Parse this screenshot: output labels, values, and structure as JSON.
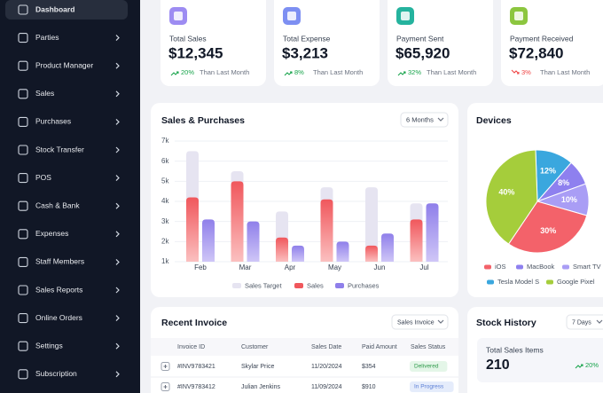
{
  "sidebar": {
    "items": [
      "Dashboard",
      "Parties",
      "Product Manager",
      "Sales",
      "Purchases",
      "Stock Transfer",
      "POS",
      "Cash & Bank",
      "Expenses",
      "Staff Members",
      "Sales Reports",
      "Online Orders",
      "Settings",
      "Subscription"
    ]
  },
  "stats": [
    {
      "label": "Total Sales",
      "value": "$12,345",
      "change": "20%",
      "trend": "up",
      "note": "Than Last Month"
    },
    {
      "label": "Total Expense",
      "value": "$3,213",
      "change": "8%",
      "trend": "up",
      "note": "Than Last Month"
    },
    {
      "label": "Payment Sent",
      "value": "$65,920",
      "change": "32%",
      "trend": "up",
      "note": "Than Last Month"
    },
    {
      "label": "Payment Received",
      "value": "$72,840",
      "change": "3%",
      "trend": "down",
      "note": "Than Last Month"
    }
  ],
  "chart_data": [
    {
      "type": "bar",
      "title": "Sales & Purchases",
      "filter": "6 Months",
      "categories": [
        "Feb",
        "Mar",
        "Apr",
        "May",
        "Jun",
        "Jul"
      ],
      "series": [
        {
          "name": "Sales Target",
          "color": "#e6e4f1",
          "values": [
            6500,
            5500,
            3500,
            4700,
            4700,
            3900
          ]
        },
        {
          "name": "Sales",
          "color": "#f0575c",
          "values": [
            4200,
            5000,
            2200,
            4100,
            1800,
            3100
          ]
        },
        {
          "name": "Purchases",
          "color": "#8f7fea",
          "values": [
            3100,
            3000,
            1800,
            2000,
            2400,
            3900
          ]
        }
      ],
      "ylim": [
        1000,
        7000
      ],
      "yticks": [
        {
          "value": 1000,
          "label": "1k"
        },
        {
          "value": 2000,
          "label": "2k"
        },
        {
          "value": 3000,
          "label": "3k"
        },
        {
          "value": 4000,
          "label": "4k"
        },
        {
          "value": 5000,
          "label": "5k"
        },
        {
          "value": 6000,
          "label": "6k"
        },
        {
          "value": 7000,
          "label": "7k"
        }
      ],
      "grid": true
    },
    {
      "type": "pie",
      "title": "Devices",
      "categories": [
        "iOS",
        "MacBook",
        "Smart TV",
        "Tesla Model S",
        "Google Pixel"
      ],
      "values": [
        30,
        8,
        10,
        12,
        40
      ],
      "value_labels": [
        "30%",
        "8%",
        "10%",
        "12%",
        "40%"
      ],
      "colors": [
        "#f3626a",
        "#8e80ef",
        "#a99df5",
        "#3aa7de",
        "#a5cd3b"
      ]
    }
  ],
  "recent_invoice": {
    "title": "Recent Invoice",
    "filter": "Sales Invoice",
    "columns": [
      "Invoice ID",
      "Customer",
      "Sales Date",
      "Paid Amount",
      "Sales Status"
    ],
    "rows": [
      [
        "#INV9783421",
        "Skylar Price",
        "11/20/2024",
        "$354",
        "Delivered"
      ],
      [
        "#INV9783412",
        "Julian Jenkins",
        "11/09/2024",
        "$910",
        "In Progress"
      ]
    ]
  },
  "stock_history": {
    "title": "Stock History",
    "filter": "7 Days",
    "label": "Total Sales Items",
    "value": "210",
    "change": "20%"
  }
}
